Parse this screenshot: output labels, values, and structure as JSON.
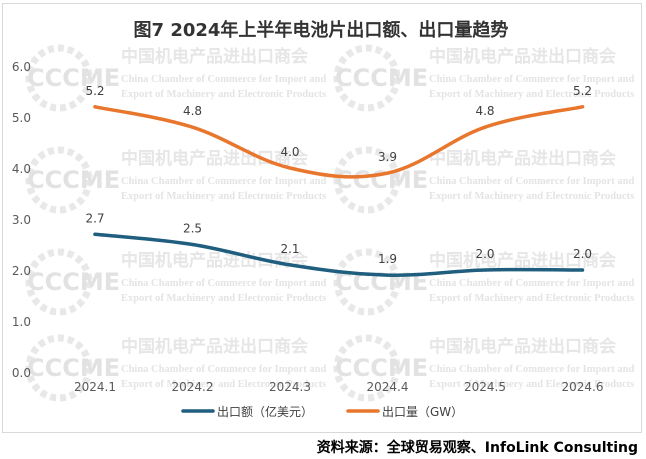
{
  "chart_data": {
    "type": "line",
    "title": "图7   2024年上半年电池片出口额、出口量趋势",
    "categories": [
      "2024.1",
      "2024.2",
      "2024.3",
      "2024.4",
      "2024.5",
      "2024.6"
    ],
    "series": [
      {
        "name": "出口额（亿美元）",
        "color": "#1f5e7e",
        "values": [
          2.7,
          2.5,
          2.1,
          1.9,
          2.0,
          2.0
        ],
        "labels": [
          "2.7",
          "2.5",
          "2.1",
          "1.9",
          "2.0",
          "2.0"
        ]
      },
      {
        "name": "出口量（GW）",
        "color": "#e8762d",
        "values": [
          5.2,
          4.8,
          4.0,
          3.9,
          4.8,
          5.2
        ],
        "labels": [
          "5.2",
          "4.8",
          "4.0",
          "3.9",
          "4.8",
          "5.2"
        ]
      }
    ],
    "ylim": [
      0,
      6
    ],
    "yticks": [
      "0.0",
      "1.0",
      "2.0",
      "3.0",
      "4.0",
      "5.0",
      "6.0"
    ],
    "ytick_values": [
      0,
      1,
      2,
      3,
      4,
      5,
      6
    ],
    "grid": false,
    "legend_position": "bottom"
  },
  "watermark": {
    "logo": "CCCME",
    "cn": "中国机电产品进出口商会",
    "en_line1": "China Chamber of Commerce for Import and",
    "en_line2": "Export of Machinery and Electronic Products"
  },
  "source": "资料来源：全球贸易观察、InfoLink Consulting"
}
